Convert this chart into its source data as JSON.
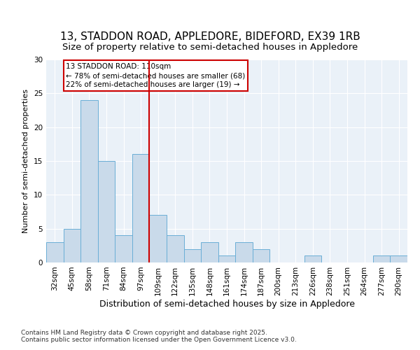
{
  "title1": "13, STADDON ROAD, APPLEDORE, BIDEFORD, EX39 1RB",
  "title2": "Size of property relative to semi-detached houses in Appledore",
  "xlabel": "Distribution of semi-detached houses by size in Appledore",
  "ylabel": "Number of semi-detached properties",
  "categories": [
    "32sqm",
    "45sqm",
    "58sqm",
    "71sqm",
    "84sqm",
    "97sqm",
    "109sqm",
    "122sqm",
    "135sqm",
    "148sqm",
    "161sqm",
    "174sqm",
    "187sqm",
    "200sqm",
    "213sqm",
    "226sqm",
    "238sqm",
    "251sqm",
    "264sqm",
    "277sqm",
    "290sqm"
  ],
  "values": [
    3,
    5,
    24,
    15,
    4,
    16,
    7,
    4,
    2,
    3,
    1,
    3,
    2,
    0,
    0,
    1,
    0,
    0,
    0,
    1,
    1
  ],
  "bar_color": "#c9daea",
  "bar_edge_color": "#6aaed6",
  "property_label": "13 STADDON ROAD: 110sqm",
  "annotation_line1": "← 78% of semi-detached houses are smaller (68)",
  "annotation_line2": "22% of semi-detached houses are larger (19) →",
  "annotation_box_color": "#ffffff",
  "annotation_box_edge_color": "#cc0000",
  "line_color": "#cc0000",
  "red_line_index": 6,
  "ylim": [
    0,
    30
  ],
  "yticks": [
    0,
    5,
    10,
    15,
    20,
    25,
    30
  ],
  "fig_background": "#ffffff",
  "plot_background": "#eaf1f8",
  "grid_color": "#ffffff",
  "footer": "Contains HM Land Registry data © Crown copyright and database right 2025.\nContains public sector information licensed under the Open Government Licence v3.0.",
  "title_fontsize": 11,
  "subtitle_fontsize": 9.5,
  "xlabel_fontsize": 9,
  "ylabel_fontsize": 8,
  "tick_fontsize": 7.5,
  "annot_fontsize": 7.5,
  "footer_fontsize": 6.5
}
